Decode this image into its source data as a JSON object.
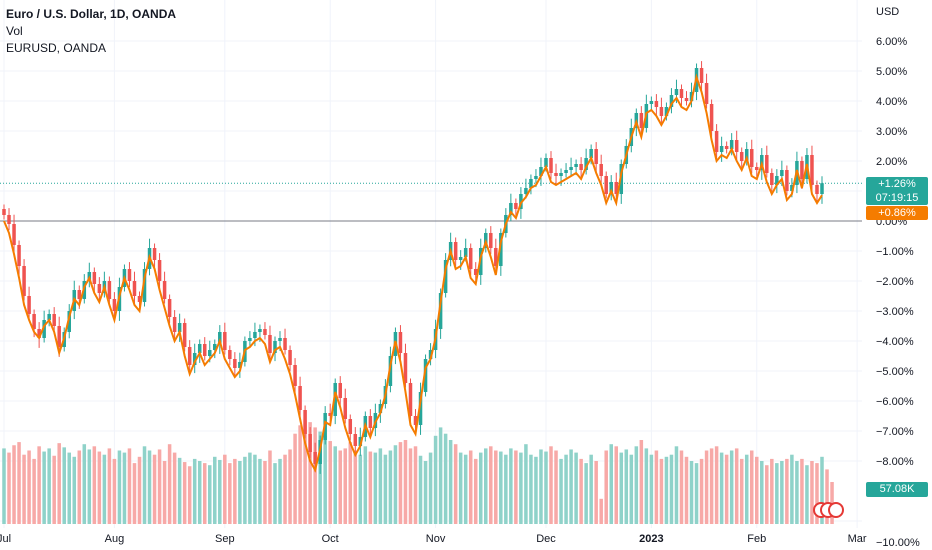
{
  "legend": {
    "title": "Euro / U.S. Dollar, 1D, OANDA",
    "vol": "Vol",
    "compare": "EURUSD, OANDA"
  },
  "axis": {
    "unit": "USD"
  },
  "tags": {
    "main_pct": "+1.26%",
    "countdown": "07:19:15",
    "compare_pct": "+0.86%",
    "volume": "57.08K"
  },
  "colors": {
    "up": "#26a69a",
    "down": "#ef5350",
    "line": "#f57c00",
    "vol_up": "#8fd2c9",
    "vol_down": "#f7a9a7",
    "grid": "#f0f3fa"
  },
  "chart_data": {
    "type": "candlestick",
    "y_unit": "percent",
    "ylim": [
      -10,
      6.5
    ],
    "y_ticks": [
      "6.00%",
      "5.00%",
      "4.00%",
      "3.00%",
      "2.00%",
      "1.00%",
      "0.00%",
      "−1.00%",
      "−2.00%",
      "−3.00%",
      "−4.00%",
      "−5.00%",
      "−6.00%",
      "−7.00%",
      "−8.00%",
      "−10.00%"
    ],
    "y_tick_values": [
      6,
      5,
      4,
      3,
      2,
      1,
      0,
      -1,
      -2,
      -3,
      -4,
      -5,
      -6,
      -7,
      -8,
      -10
    ],
    "x_ticks": [
      "Jul",
      "Aug",
      "Sep",
      "Oct",
      "Nov",
      "Dec",
      "2023",
      "Feb",
      "Mar"
    ],
    "x_tick_index": [
      0,
      22,
      44,
      65,
      86,
      108,
      129,
      150,
      170
    ],
    "last_value": 1.26,
    "compare_last_value": 0.86,
    "closes": [
      0.2,
      -0.1,
      -0.8,
      -1.5,
      -2.5,
      -3.1,
      -3.6,
      -3.9,
      -3.3,
      -3.1,
      -3.5,
      -4.2,
      -3.7,
      -3.0,
      -2.3,
      -2.6,
      -2.0,
      -1.7,
      -2.1,
      -2.4,
      -2.0,
      -2.6,
      -3.0,
      -2.2,
      -1.6,
      -2.0,
      -2.5,
      -2.7,
      -1.6,
      -0.9,
      -1.3,
      -2.0,
      -2.6,
      -3.2,
      -3.7,
      -3.4,
      -4.2,
      -4.8,
      -4.4,
      -4.1,
      -4.5,
      -4.3,
      -4.1,
      -3.7,
      -4.3,
      -4.6,
      -4.9,
      -4.7,
      -4.0,
      -3.9,
      -3.7,
      -3.6,
      -3.8,
      -4.4,
      -4.0,
      -3.9,
      -4.3,
      -4.8,
      -5.5,
      -6.3,
      -7.1,
      -7.7,
      -8.1,
      -7.3,
      -6.4,
      -6.5,
      -5.4,
      -5.9,
      -6.6,
      -7.1,
      -7.5,
      -7.2,
      -6.5,
      -6.9,
      -6.4,
      -6.1,
      -5.5,
      -4.5,
      -3.7,
      -4.4,
      -5.4,
      -6.5,
      -6.8,
      -5.7,
      -4.6,
      -4.3,
      -3.6,
      -2.4,
      -1.3,
      -0.7,
      -1.3,
      -1.2,
      -0.9,
      -1.6,
      -1.8,
      -0.9,
      -0.4,
      -0.9,
      -1.5,
      -0.4,
      0.2,
      0.6,
      0.4,
      0.9,
      1.1,
      1.4,
      1.5,
      1.8,
      2.1,
      1.6,
      1.5,
      1.6,
      1.7,
      1.8,
      1.9,
      1.7,
      2.1,
      2.4,
      1.9,
      1.5,
      0.9,
      1.3,
      0.9,
      1.9,
      2.5,
      3.1,
      3.6,
      3.1,
      3.9,
      4.0,
      3.8,
      3.5,
      3.8,
      4.2,
      4.4,
      4.1,
      4.0,
      4.3,
      5.1,
      4.6,
      3.9,
      3.0,
      2.3,
      2.5,
      2.4,
      2.7,
      2.3,
      2.0,
      2.4,
      1.8,
      1.7,
      2.2,
      1.6,
      1.2,
      1.5,
      1.7,
      1.0,
      1.2,
      2.0,
      1.4,
      2.2,
      1.2,
      0.9,
      1.26
    ],
    "compare_closes": [
      0.0,
      -0.4,
      -1.1,
      -1.9,
      -2.8,
      -3.3,
      -3.7,
      -3.9,
      -3.5,
      -3.3,
      -3.7,
      -4.4,
      -3.9,
      -3.2,
      -2.6,
      -2.8,
      -2.2,
      -1.9,
      -2.4,
      -2.7,
      -2.2,
      -2.8,
      -3.3,
      -2.5,
      -1.9,
      -2.3,
      -2.8,
      -3.0,
      -1.9,
      -1.2,
      -1.6,
      -2.3,
      -2.9,
      -3.5,
      -4.0,
      -3.7,
      -4.5,
      -5.1,
      -4.7,
      -4.4,
      -4.8,
      -4.6,
      -4.4,
      -4.0,
      -4.6,
      -4.9,
      -5.2,
      -5.0,
      -4.3,
      -4.2,
      -4.0,
      -3.9,
      -4.1,
      -4.7,
      -4.3,
      -4.2,
      -4.6,
      -5.1,
      -5.8,
      -6.6,
      -7.4,
      -8.0,
      -8.3,
      -7.6,
      -6.7,
      -6.8,
      -5.7,
      -6.2,
      -6.9,
      -7.4,
      -7.8,
      -7.5,
      -6.8,
      -7.2,
      -6.7,
      -6.4,
      -5.8,
      -4.8,
      -4.0,
      -4.7,
      -5.7,
      -6.8,
      -7.1,
      -6.0,
      -4.9,
      -4.6,
      -3.9,
      -2.7,
      -1.6,
      -1.0,
      -1.6,
      -1.5,
      -1.2,
      -1.9,
      -2.1,
      -1.2,
      -0.7,
      -1.2,
      -1.8,
      -0.7,
      -0.1,
      0.3,
      0.1,
      0.6,
      0.8,
      1.1,
      1.2,
      1.5,
      1.8,
      1.3,
      1.2,
      1.3,
      1.4,
      1.5,
      1.6,
      1.4,
      1.8,
      2.1,
      1.6,
      1.2,
      0.6,
      1.0,
      0.6,
      1.6,
      2.2,
      2.8,
      3.3,
      2.8,
      3.6,
      3.7,
      3.5,
      3.2,
      3.5,
      3.9,
      4.1,
      3.8,
      3.7,
      4.0,
      4.8,
      4.3,
      3.6,
      2.7,
      2.0,
      2.2,
      2.1,
      2.4,
      2.0,
      1.7,
      2.1,
      1.5,
      1.4,
      1.9,
      1.3,
      0.9,
      1.2,
      1.4,
      0.7,
      0.9,
      1.7,
      1.1,
      1.9,
      0.9,
      0.6,
      0.86
    ],
    "volumes": [
      0.72,
      0.68,
      0.75,
      0.78,
      0.66,
      0.7,
      0.62,
      0.74,
      0.69,
      0.72,
      0.65,
      0.77,
      0.73,
      0.68,
      0.64,
      0.7,
      0.76,
      0.71,
      0.74,
      0.69,
      0.66,
      0.72,
      0.62,
      0.7,
      0.68,
      0.72,
      0.58,
      0.64,
      0.74,
      0.7,
      0.66,
      0.71,
      0.6,
      0.76,
      0.68,
      0.63,
      0.59,
      0.55,
      0.62,
      0.6,
      0.58,
      0.56,
      0.64,
      0.61,
      0.66,
      0.58,
      0.62,
      0.6,
      0.64,
      0.68,
      0.66,
      0.62,
      0.6,
      0.7,
      0.58,
      0.62,
      0.66,
      0.71,
      0.86,
      0.94,
      0.99,
      0.97,
      0.92,
      0.88,
      0.84,
      0.79,
      0.74,
      0.7,
      0.72,
      0.78,
      0.7,
      0.66,
      0.74,
      0.69,
      0.68,
      0.72,
      0.66,
      0.7,
      0.75,
      0.78,
      0.8,
      0.72,
      0.74,
      0.65,
      0.6,
      0.68,
      0.84,
      0.92,
      0.86,
      0.8,
      0.76,
      0.68,
      0.66,
      0.7,
      0.62,
      0.68,
      0.72,
      0.74,
      0.7,
      0.69,
      0.66,
      0.72,
      0.7,
      0.68,
      0.76,
      0.66,
      0.64,
      0.71,
      0.69,
      0.74,
      0.7,
      0.62,
      0.66,
      0.71,
      0.68,
      0.62,
      0.58,
      0.66,
      0.6,
      0.24,
      0.7,
      0.76,
      0.74,
      0.68,
      0.71,
      0.66,
      0.74,
      0.8,
      0.72,
      0.66,
      0.7,
      0.62,
      0.64,
      0.66,
      0.74,
      0.7,
      0.64,
      0.6,
      0.58,
      0.62,
      0.7,
      0.72,
      0.74,
      0.68,
      0.66,
      0.7,
      0.72,
      0.62,
      0.66,
      0.7,
      0.64,
      0.6,
      0.56,
      0.62,
      0.58,
      0.6,
      0.62,
      0.66,
      0.6,
      0.62,
      0.56,
      0.6,
      0.58,
      0.64,
      0.52,
      0.4
    ]
  }
}
